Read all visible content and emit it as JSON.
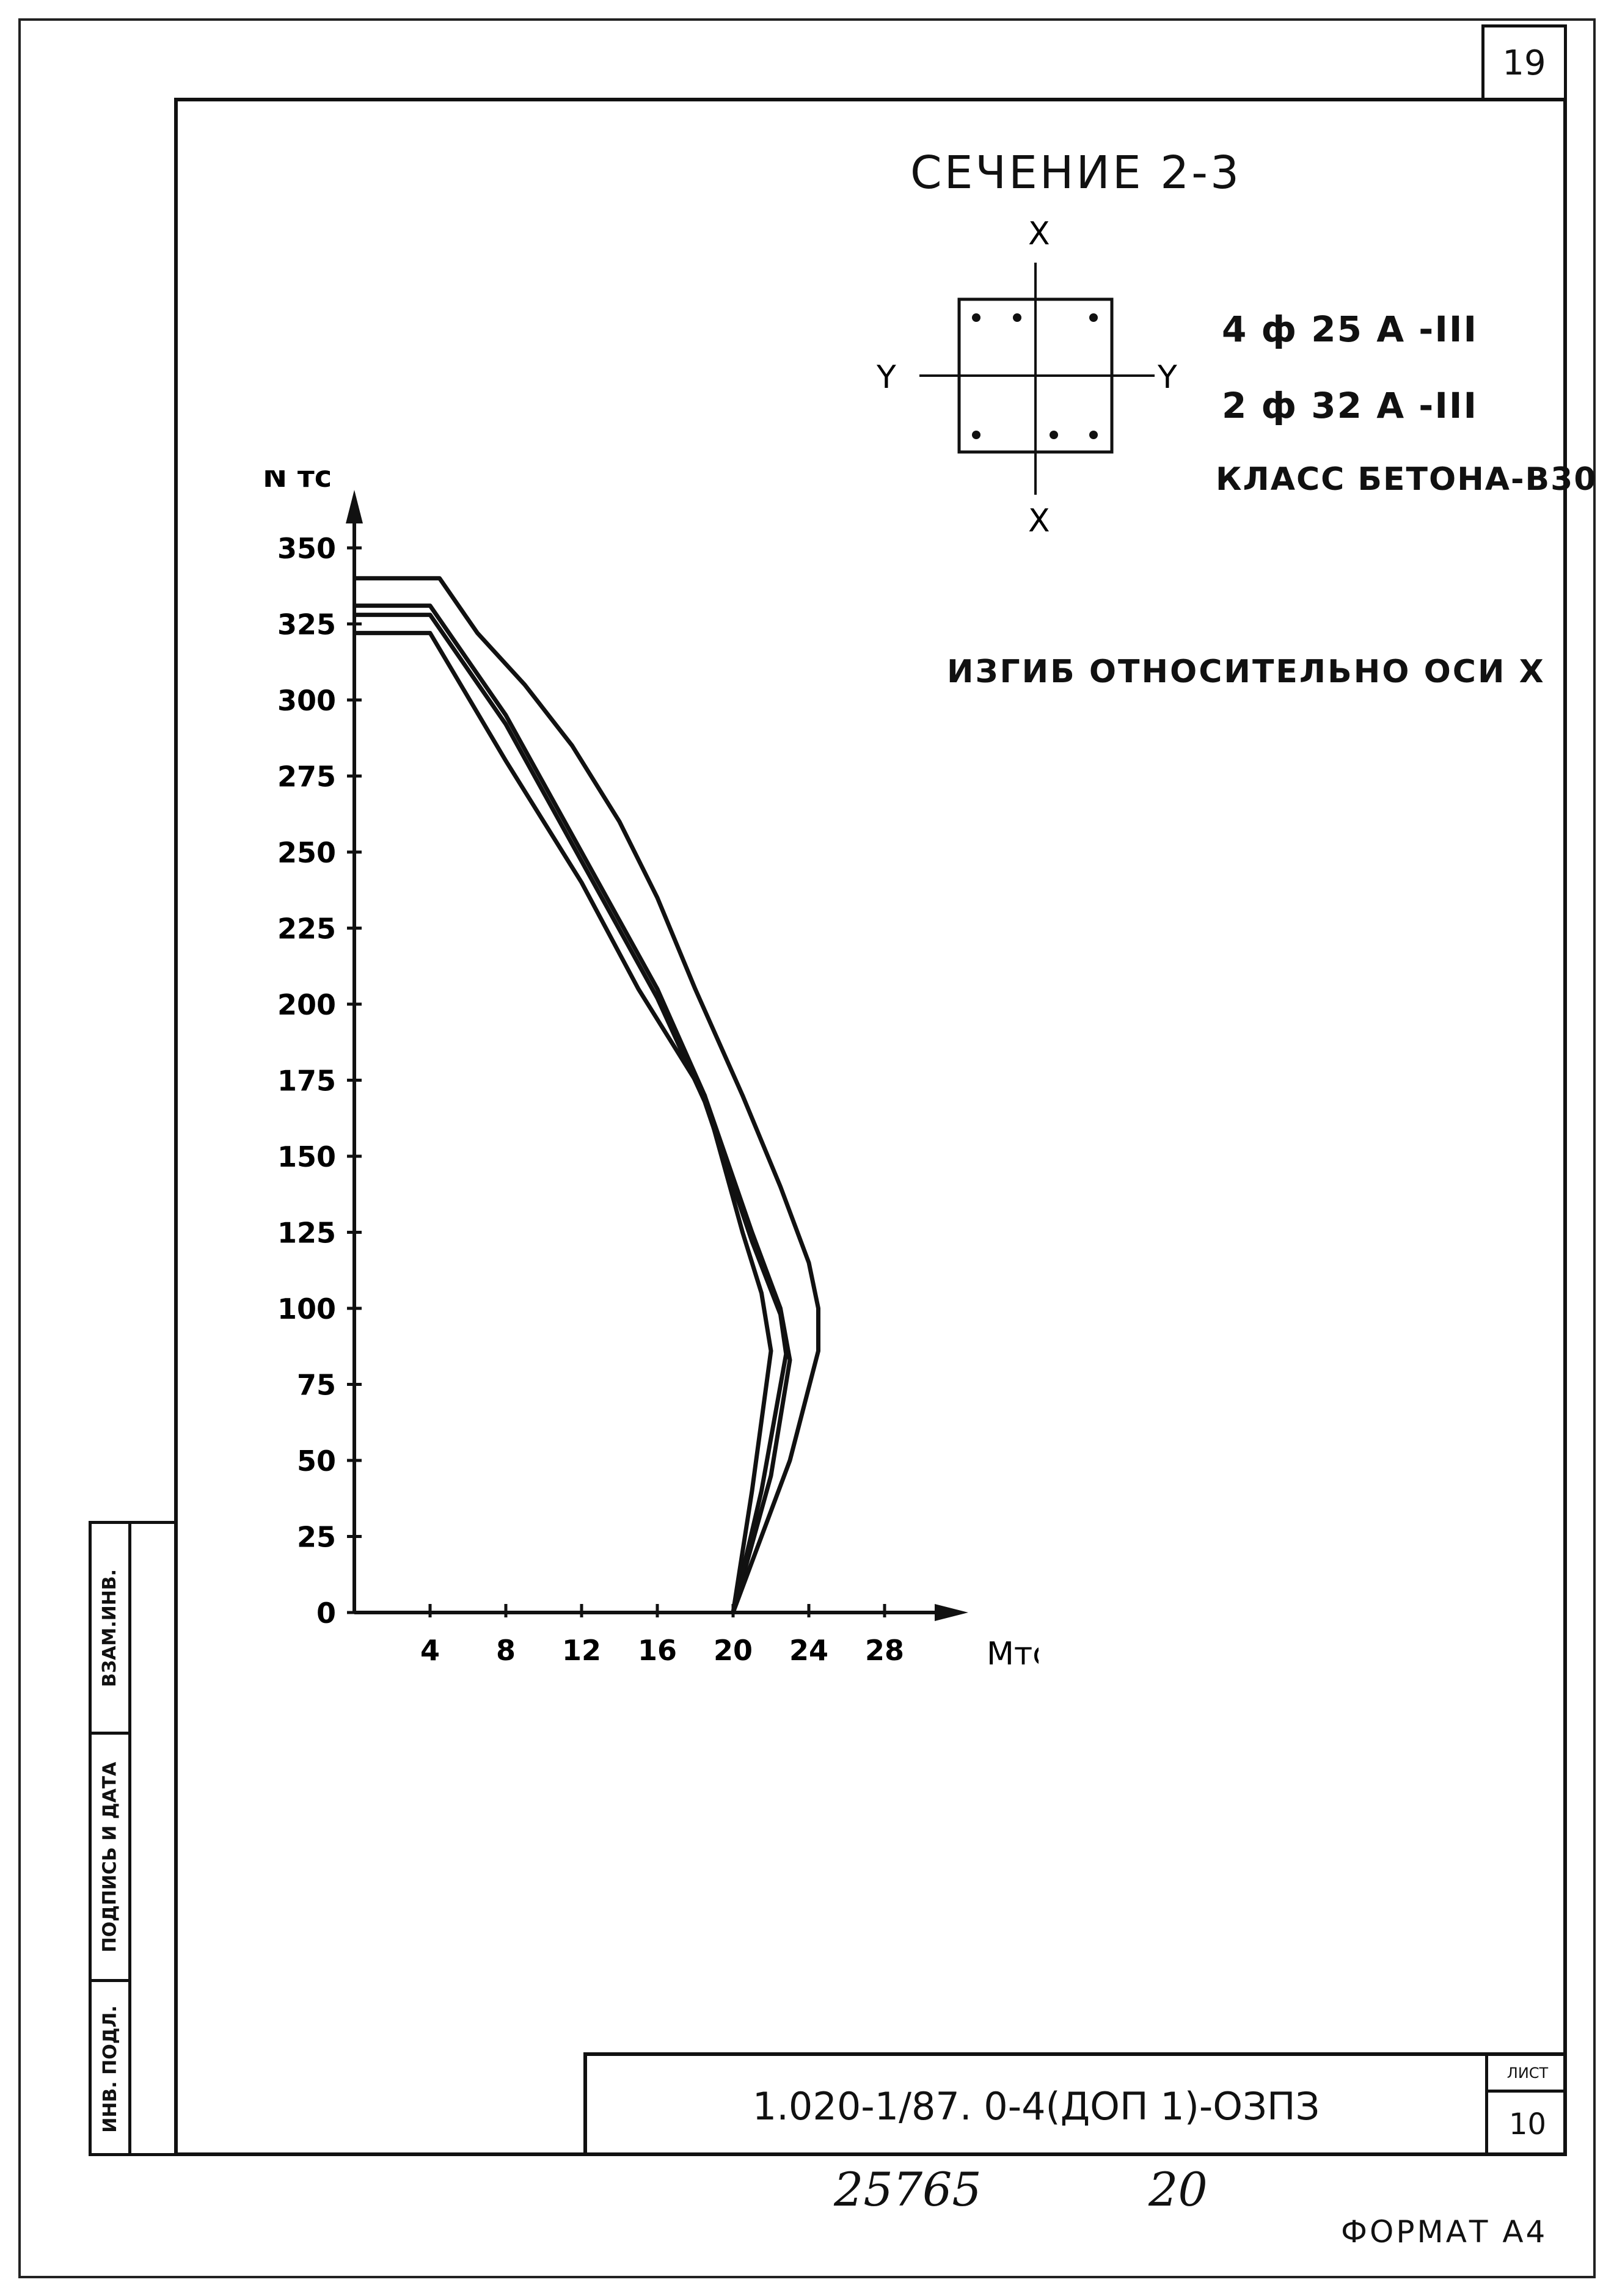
{
  "page": {
    "sheet_number_top": "19",
    "section_title": "СЕЧЕНИЕ 2-3",
    "axis_labels": {
      "x_top": "X",
      "x_bottom": "X",
      "y_left": "Y",
      "y_right": "Y"
    },
    "reinforcement": [
      "4 ф 25 А -III",
      "2 ф 32 А -III"
    ],
    "concrete_class": "КЛАСС БЕТОНА-В30",
    "bending_note": "ИЗГИБ ОТНОСИТЕЛЬНО ОСИ X",
    "side_stamp": [
      "ВЗАМ.ИНВ.",
      "ПОДПИСЬ И ДАТА",
      "ИНВ. ПОДЛ."
    ],
    "stamp_code": "1.020-1/87. 0-4(ДОП 1)-ОЗПЗ",
    "stamp_sheet_label": "ЛИСТ",
    "stamp_sheet_number": "10",
    "handwritten_number": "25765",
    "handwritten_page": "20",
    "format_label": "ФОРМАТ А4"
  },
  "chart_data": {
    "type": "line",
    "xlabel": "Мтс.м",
    "ylabel": "N тс",
    "xlim": [
      0,
      30
    ],
    "ylim": [
      0,
      350
    ],
    "x_ticks": [
      4,
      8,
      12,
      16,
      20,
      24,
      28
    ],
    "y_ticks": [
      0,
      25,
      50,
      75,
      100,
      125,
      150,
      175,
      200,
      225,
      250,
      275,
      300,
      325,
      350
    ],
    "series": [
      {
        "x": [
          0,
          4.5,
          6.5,
          9,
          11.5,
          14,
          16,
          18,
          20.5,
          22.5,
          24,
          24.5,
          24.5,
          23,
          21.5,
          20
        ],
        "y": [
          340,
          340,
          322,
          305,
          285,
          260,
          235,
          205,
          170,
          140,
          115,
          100,
          86,
          50,
          25,
          0
        ]
      },
      {
        "x": [
          0,
          4,
          8,
          12,
          16,
          18.5,
          21,
          22.5,
          23,
          22,
          20
        ],
        "y": [
          331,
          331,
          295,
          250,
          205,
          170,
          125,
          100,
          83,
          45,
          0
        ]
      },
      {
        "x": [
          0,
          4,
          8,
          12,
          16,
          18.5,
          21,
          22.5,
          22.8,
          21.5,
          20
        ],
        "y": [
          328,
          328,
          292,
          247,
          202,
          168,
          122,
          98,
          85,
          40,
          0
        ]
      },
      {
        "x": [
          0,
          4,
          8,
          12,
          15,
          18.5,
          20.5,
          21.5,
          22,
          21,
          20
        ],
        "y": [
          322,
          322,
          280,
          240,
          205,
          170,
          125,
          105,
          86,
          40,
          0
        ]
      }
    ]
  }
}
